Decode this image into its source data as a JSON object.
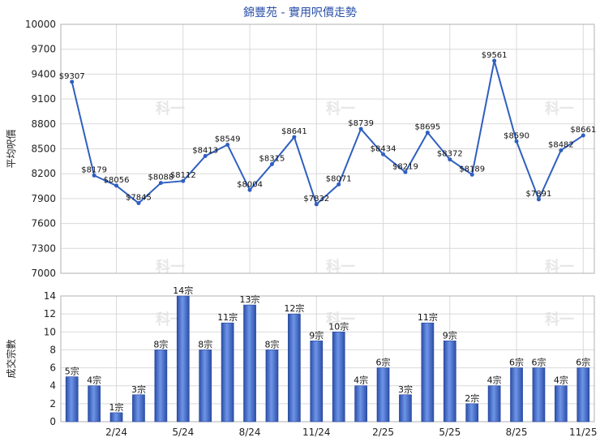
{
  "chart_data": [
    {
      "type": "line",
      "title": "錦豐苑 - 實用呎價走勢",
      "ylabel": "平均呎價",
      "ylim": [
        7000,
        10000
      ],
      "yticks": [
        7000,
        7300,
        7600,
        7900,
        8200,
        8500,
        8800,
        9100,
        9400,
        9700,
        10000
      ],
      "grid": true,
      "color": "#2f5fbf",
      "values": [
        9307,
        8179,
        8056,
        7845,
        8088,
        8112,
        8413,
        8549,
        8004,
        8315,
        8641,
        7832,
        8071,
        8739,
        8434,
        8219,
        8695,
        8372,
        8189,
        9561,
        8590,
        7891,
        8482,
        8661
      ],
      "labels": [
        "$9307",
        "$8179",
        "$8056",
        "$7845",
        "$8088",
        "$8112",
        "$8413",
        "$8549",
        "$8004",
        "$8315",
        "$8641",
        "$7832",
        "$8071",
        "$8739",
        "$8434",
        "$8219",
        "$8695",
        "$8372",
        "$8189",
        "$9561",
        "$8590",
        "$7891",
        "$8482",
        "$8661"
      ]
    },
    {
      "type": "bar",
      "ylabel": "成交宗數",
      "ylim": [
        0,
        14
      ],
      "yticks": [
        0,
        2,
        4,
        6,
        8,
        10,
        12,
        14
      ],
      "grid": true,
      "color": "#3a63c4",
      "values": [
        5,
        4,
        1,
        3,
        8,
        14,
        8,
        11,
        13,
        8,
        12,
        9,
        10,
        4,
        6,
        3,
        11,
        9,
        2,
        4,
        6,
        6,
        4,
        6
      ],
      "labels": [
        "5宗",
        "4宗",
        "1宗",
        "3宗",
        "8宗",
        "14宗",
        "8宗",
        "11宗",
        "13宗",
        "8宗",
        "12宗",
        "9宗",
        "10宗",
        "4宗",
        "6宗",
        "3宗",
        "11宗",
        "9宗",
        "2宗",
        "4宗",
        "6宗",
        "6宗",
        "4宗",
        "6宗"
      ],
      "xticks": [
        {
          "index": 2,
          "label": "2/24"
        },
        {
          "index": 5,
          "label": "5/24"
        },
        {
          "index": 8,
          "label": "8/24"
        },
        {
          "index": 11,
          "label": "11/24"
        },
        {
          "index": 14,
          "label": "2/25"
        },
        {
          "index": 17,
          "label": "5/25"
        },
        {
          "index": 20,
          "label": "8/25"
        },
        {
          "index": 23,
          "label": "11/25"
        }
      ]
    }
  ],
  "watermark": "科一"
}
